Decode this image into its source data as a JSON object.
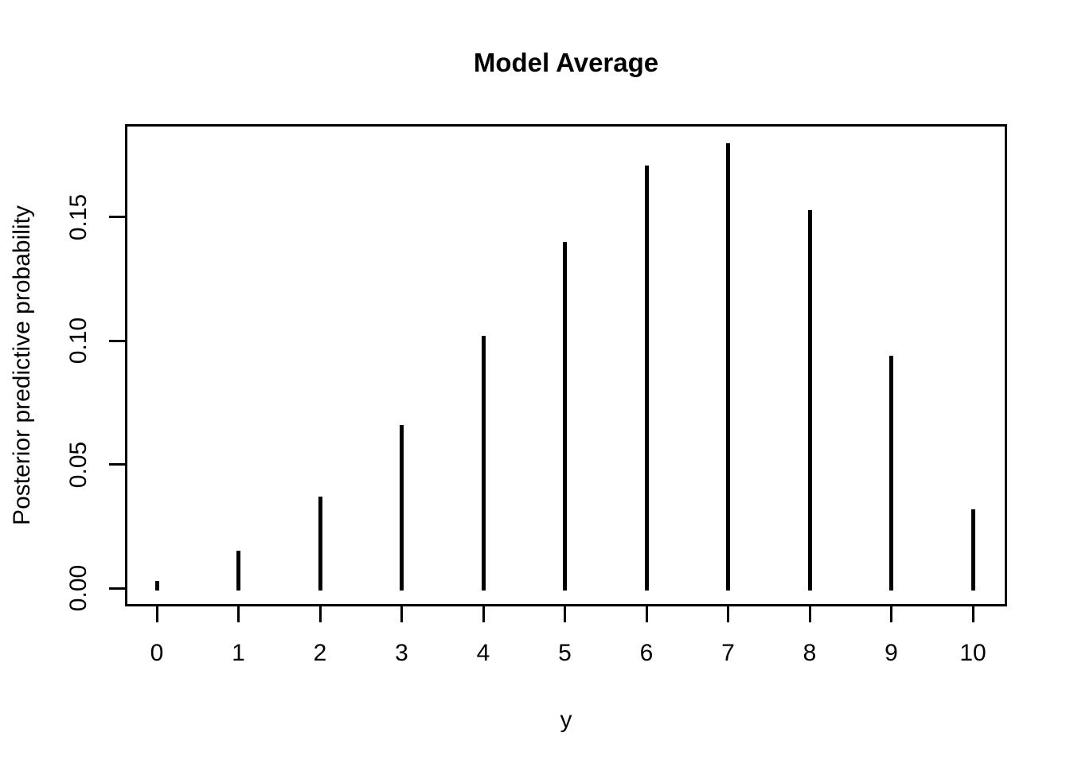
{
  "chart_data": {
    "type": "stem",
    "title": "Model Average",
    "xlabel": "y",
    "ylabel": "Posterior predictive probability",
    "x": [
      0,
      1,
      2,
      3,
      4,
      5,
      6,
      7,
      8,
      9,
      10
    ],
    "values": [
      0.003,
      0.015,
      0.037,
      0.066,
      0.102,
      0.14,
      0.171,
      0.18,
      0.153,
      0.094,
      0.032
    ],
    "xtick_labels": [
      "0",
      "1",
      "2",
      "3",
      "4",
      "5",
      "6",
      "7",
      "8",
      "9",
      "10"
    ],
    "yticks": [
      {
        "value": 0.0,
        "label": "0.00"
      },
      {
        "value": 0.05,
        "label": "0.05"
      },
      {
        "value": 0.1,
        "label": "0.10"
      },
      {
        "value": 0.15,
        "label": "0.15"
      }
    ],
    "xlim": [
      -0.4,
      10.4
    ],
    "ylim": [
      -0.007,
      0.188
    ],
    "grid": false,
    "legend": "none",
    "colors": {
      "stem": "#000000",
      "axis": "#000000",
      "text": "#000000",
      "background": "#FFFFFF"
    }
  }
}
